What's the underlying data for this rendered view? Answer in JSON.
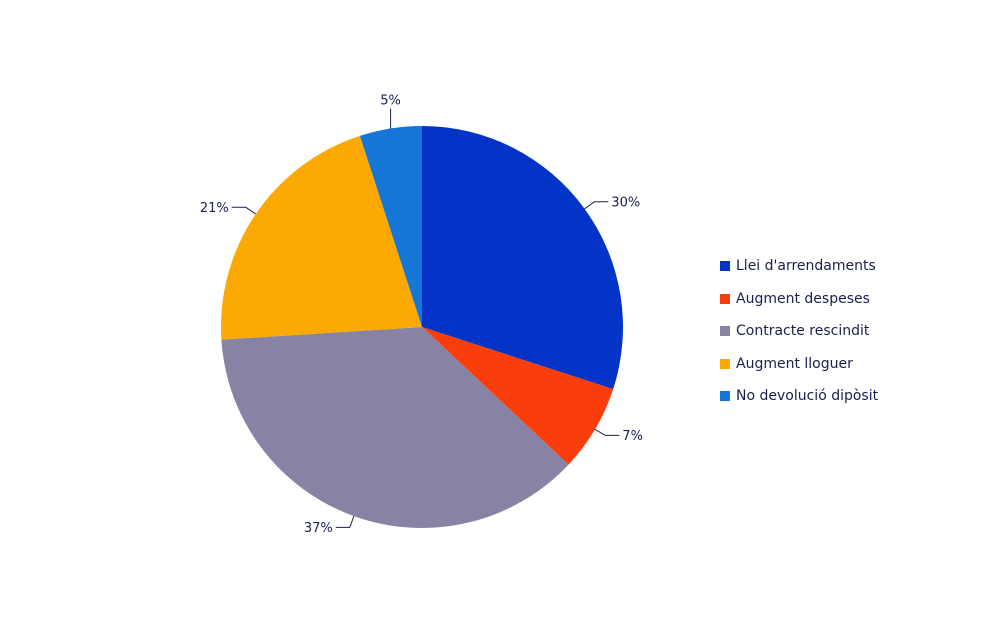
{
  "chart_data": {
    "type": "pie",
    "title": "",
    "slices": [
      {
        "label": "Llei d'arrendaments",
        "value": 30,
        "value_label": "30%",
        "color": "#0433c7"
      },
      {
        "label": "Augment despeses",
        "value": 7,
        "value_label": "7%",
        "color": "#f93d0b"
      },
      {
        "label": "Contracte rescindit",
        "value": 37,
        "value_label": "37%",
        "color": "#8882a4"
      },
      {
        "label": "Augment lloguer",
        "value": 21,
        "value_label": "21%",
        "color": "#fda903"
      },
      {
        "label": "No devolució dipòsit",
        "value": 5,
        "value_label": "5%",
        "color": "#1576d6"
      }
    ],
    "start_angle": "12 o'clock",
    "direction": "clockwise",
    "legend_position": "right"
  }
}
